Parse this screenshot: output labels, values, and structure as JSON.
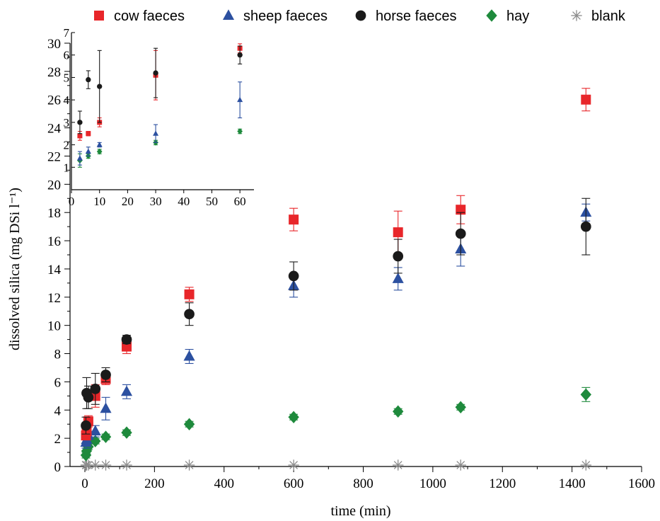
{
  "chart_data": {
    "type": "scatter",
    "xlabel": "time (min)",
    "ylabel": "dissolved silica (mg DSi l⁻¹)",
    "xlim": [
      0,
      1600
    ],
    "ylim": [
      0,
      30
    ],
    "xticks": [
      "0",
      "200",
      "400",
      "600",
      "800",
      "1000",
      "1200",
      "1400",
      "1600"
    ],
    "yticks": [
      "0",
      "2",
      "4",
      "6",
      "8",
      "10",
      "12",
      "14",
      "16",
      "18",
      "20",
      "22",
      "24",
      "26",
      "28",
      "30"
    ],
    "legend_position": "top",
    "series": [
      {
        "name": "cow faeces",
        "marker": "square",
        "color": "#e8262a",
        "x": [
          3,
          5,
          10,
          30,
          60,
          120,
          300,
          600,
          900,
          1080,
          1440
        ],
        "y": [
          2.2,
          2.5,
          3.2,
          5.0,
          6.2,
          8.5,
          12.2,
          17.5,
          16.6,
          18.2,
          26.0
        ],
        "err": [
          0.3,
          0.3,
          0.4,
          0.8,
          0.4,
          0.5,
          0.5,
          0.8,
          1.5,
          1.0,
          0.8
        ]
      },
      {
        "name": "sheep faeces",
        "marker": "triangle",
        "color": "#2c50a0",
        "x": [
          3,
          5,
          10,
          30,
          60,
          120,
          300,
          600,
          900,
          1080,
          1440
        ],
        "y": [
          1.7,
          1.9,
          2.2,
          2.5,
          4.1,
          5.3,
          7.8,
          12.8,
          13.3,
          15.4,
          18.0
        ],
        "err": [
          0.4,
          0.3,
          0.3,
          0.4,
          0.8,
          0.5,
          0.5,
          0.8,
          0.8,
          1.2,
          0.6
        ]
      },
      {
        "name": "horse faeces",
        "marker": "circle",
        "color": "#1a1a1a",
        "x": [
          3,
          5,
          10,
          30,
          60,
          120,
          300,
          600,
          900,
          1080,
          1440
        ],
        "y": [
          2.9,
          5.2,
          4.9,
          5.5,
          6.5,
          9.0,
          10.8,
          13.5,
          14.9,
          16.5,
          17.0
        ],
        "err": [
          0.6,
          1.1,
          0.8,
          1.1,
          0.5,
          0.3,
          0.8,
          1.0,
          1.2,
          1.5,
          2.0
        ]
      },
      {
        "name": "hay",
        "marker": "diamond",
        "color": "#1e8a3c",
        "x": [
          3,
          5,
          10,
          30,
          60,
          120,
          300,
          600,
          900,
          1080,
          1440
        ],
        "y": [
          0.8,
          1.1,
          1.4,
          1.8,
          2.1,
          2.4,
          3.0,
          3.5,
          3.9,
          4.2,
          5.1
        ],
        "err": [
          0.2,
          0.2,
          0.2,
          0.2,
          0.2,
          0.2,
          0.2,
          0.2,
          0.2,
          0.2,
          0.5
        ]
      },
      {
        "name": "blank",
        "marker": "asterisk",
        "color": "#8c8c8c",
        "x": [
          3,
          5,
          10,
          30,
          60,
          120,
          300,
          600,
          900,
          1080,
          1440
        ],
        "y": [
          0.1,
          0.1,
          0.1,
          0.1,
          0.1,
          0.1,
          0.1,
          0.1,
          0.1,
          0.1,
          0.1
        ],
        "err": [
          0,
          0,
          0,
          0,
          0,
          0,
          0,
          0,
          0,
          0,
          0
        ]
      }
    ],
    "inset": {
      "xlim": [
        0,
        65
      ],
      "ylim": [
        0,
        7
      ],
      "xticks": [
        "0",
        "10",
        "20",
        "30",
        "40",
        "50",
        "60"
      ],
      "yticks": [
        "1",
        "2",
        "3",
        "4",
        "5",
        "6",
        "7"
      ],
      "series": [
        {
          "name": "cow faeces",
          "x": [
            3,
            6,
            10,
            30,
            60
          ],
          "y": [
            2.4,
            2.5,
            3.0,
            5.1,
            6.3
          ],
          "err": [
            0.2,
            0.1,
            0.2,
            1.1,
            0.2
          ]
        },
        {
          "name": "sheep faeces",
          "x": [
            3,
            6,
            10,
            30,
            60
          ],
          "y": [
            1.4,
            1.7,
            2.0,
            2.5,
            4.0
          ],
          "err": [
            0.3,
            0.2,
            0.1,
            0.4,
            0.8
          ]
        },
        {
          "name": "horse faeces",
          "x": [
            3,
            6,
            10,
            30,
            60
          ],
          "y": [
            3.0,
            4.9,
            4.6,
            5.2,
            6.0
          ],
          "err": [
            0.5,
            0.4,
            1.6,
            1.1,
            0.4
          ]
        },
        {
          "name": "hay",
          "x": [
            3,
            6,
            10,
            30,
            60
          ],
          "y": [
            1.3,
            1.5,
            1.7,
            2.1,
            2.6
          ],
          "err": [
            0.3,
            0.1,
            0.1,
            0.1,
            0.1
          ]
        }
      ]
    }
  }
}
